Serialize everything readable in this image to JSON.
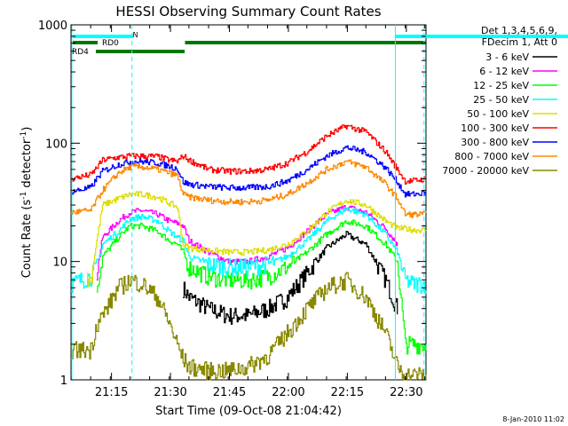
{
  "chart_data": {
    "type": "line",
    "title": "HESSI Observing Summary Count Rates",
    "xlabel": "Start Time (09-Oct-08 21:04:42)",
    "ylabel_main": "Count Rate (s",
    "ylabel_sup1": "-1",
    "ylabel_mid": " detector",
    "ylabel_sup2": "-1",
    "ylabel_end": ")",
    "yscale": "log",
    "ylim": [
      1,
      1000
    ],
    "xlim_minutes": [
      0,
      90.3
    ],
    "x_ticks": [
      {
        "label": "21:15",
        "min": 10.3
      },
      {
        "label": "21:30",
        "min": 25.3
      },
      {
        "label": "21:45",
        "min": 40.3
      },
      {
        "label": "22:00",
        "min": 55.3
      },
      {
        "label": "22:15",
        "min": 70.3
      },
      {
        "label": "22:30",
        "min": 85.3
      }
    ],
    "y_ticks": [
      {
        "label": "1",
        "v": 1
      },
      {
        "label": "10",
        "v": 10
      },
      {
        "label": "100",
        "v": 100
      },
      {
        "label": "1000",
        "v": 1000
      }
    ],
    "legend_header": [
      "Det 1,3,4,5,6,9,",
      "FDecim 1, Att 0"
    ],
    "x": [
      0,
      5,
      6.5,
      8,
      12,
      15,
      18,
      22,
      25,
      27,
      28.5,
      30,
      35,
      40,
      45,
      50,
      55,
      60,
      65,
      70,
      75,
      80,
      83,
      85,
      87,
      90.3
    ],
    "series": [
      {
        "name": "3 - 6 keV",
        "color": "#000000",
        "start": 28.5,
        "end": 83,
        "values": [
          null,
          null,
          null,
          null,
          null,
          null,
          null,
          null,
          null,
          null,
          6,
          5,
          4,
          3.5,
          3.5,
          4,
          5,
          8,
          13,
          17,
          14,
          7,
          4,
          null,
          null,
          null
        ]
      },
      {
        "name": "6 - 12 keV",
        "color": "#ff00ff",
        "start": 6.5,
        "end": 83,
        "values": [
          null,
          null,
          8,
          16,
          22,
          26,
          27,
          25,
          22,
          21,
          20,
          15,
          12,
          10,
          10,
          11,
          13,
          18,
          25,
          29,
          26,
          19,
          14,
          null,
          null,
          null
        ]
      },
      {
        "name": "12 - 25 keV",
        "color": "#00ff00",
        "start": 6.5,
        "end": 90.3,
        "values": [
          null,
          null,
          6,
          11,
          16,
          20,
          20,
          18,
          15,
          14,
          12,
          9,
          7.5,
          7,
          7,
          7.5,
          9,
          12,
          17,
          22,
          20,
          14,
          10,
          2,
          2,
          2
        ]
      },
      {
        "name": "25 - 50 keV",
        "color": "#00ffff",
        "start": 0,
        "end": 90.3,
        "values": [
          6.5,
          7.5,
          9,
          14,
          18,
          23,
          24,
          22,
          18,
          16,
          15,
          11,
          9.5,
          9,
          9,
          9.5,
          11,
          15,
          22,
          28,
          25,
          17,
          12,
          7,
          6.5,
          6.5
        ]
      },
      {
        "name": "50 - 100 keV",
        "color": "#dddd00",
        "start": 4,
        "end": 90.3,
        "values": [
          null,
          7,
          15,
          30,
          34,
          37,
          37,
          35,
          31,
          29,
          14,
          13,
          12.5,
          12,
          12,
          12.5,
          14,
          18,
          26,
          33,
          30,
          22,
          19,
          19,
          18.5,
          18.5
        ]
      },
      {
        "name": "100 - 300 keV",
        "color": "#ff0000",
        "start": 0,
        "end": 90.3,
        "values": [
          50,
          54,
          62,
          72,
          76,
          78,
          78,
          77,
          72,
          70,
          78,
          72,
          60,
          58,
          58,
          60,
          68,
          85,
          115,
          140,
          125,
          85,
          60,
          48,
          48,
          50
        ]
      },
      {
        "name": "300 - 800 keV",
        "color": "#0000ff",
        "start": 0,
        "end": 90.3,
        "values": [
          39,
          42,
          50,
          58,
          66,
          70,
          70,
          68,
          64,
          61,
          47,
          45,
          43,
          42,
          42,
          43,
          48,
          60,
          78,
          92,
          84,
          62,
          47,
          37,
          37,
          38
        ]
      },
      {
        "name": "800 - 7000 keV",
        "color": "#ff8800",
        "start": 0,
        "end": 90.3,
        "values": [
          26,
          27,
          33,
          40,
          56,
          63,
          63,
          60,
          56,
          53,
          37,
          35,
          33,
          32,
          32,
          33,
          37,
          46,
          60,
          70,
          63,
          45,
          34,
          25,
          25,
          25
        ]
      },
      {
        "name": "7000 - 20000 keV",
        "color": "#888800",
        "start": 0,
        "end": 90.3,
        "values": [
          1.8,
          1.8,
          3,
          3.5,
          6,
          7,
          6.5,
          5,
          3,
          2,
          1.5,
          1.3,
          1.2,
          1.2,
          1.3,
          1.6,
          2.5,
          4,
          6,
          7,
          5,
          2.5,
          1.3,
          1.1,
          1.1,
          1.1
        ]
      }
    ],
    "state_bars": {
      "N_label": "N",
      "RD0_label": "RD0",
      "RD4_label": "RD4"
    },
    "vertical_lines": [
      {
        "min": 0.2,
        "style": "solid"
      },
      {
        "min": 15.5,
        "style": "dashed"
      },
      {
        "min": 82.5,
        "style": "solid"
      },
      {
        "min": 89.8,
        "style": "dashed"
      }
    ],
    "grid": false,
    "legend_placement": "right"
  },
  "footer_date": "8-Jan-2010 11:02"
}
